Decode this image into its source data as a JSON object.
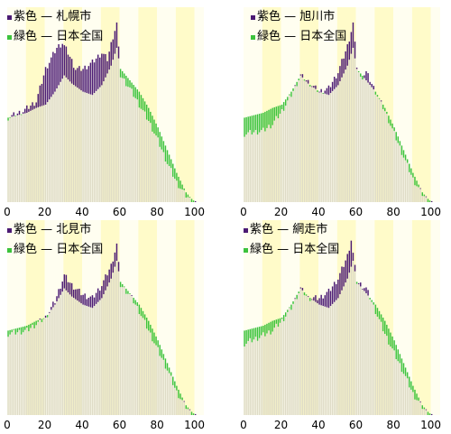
{
  "colors": {
    "band_light": "#fffef0",
    "band_dark": "#fffbc9",
    "male": "#4b1a73",
    "female": "#3cc23c",
    "bar_fill": "#dedbc6"
  },
  "chart_data": [
    {
      "type": "bar",
      "legend": [
        {
          "label": "紫色 — 札幌市",
          "color": "#4b1a73"
        },
        {
          "label": "緑色 — 日本全国",
          "color": "#3cc23c"
        }
      ],
      "x_ticks": [
        0,
        20,
        40,
        60,
        80,
        100
      ],
      "xlim": [
        0,
        105
      ],
      "ylim": [
        0,
        1.2
      ],
      "series": [
        {
          "name": "札幌市",
          "profile": [
            [
              0,
              0.52
            ],
            [
              8,
              0.56
            ],
            [
              15,
              0.62
            ],
            [
              20,
              0.82
            ],
            [
              26,
              0.95
            ],
            [
              29,
              0.98
            ],
            [
              32,
              0.92
            ],
            [
              36,
              0.82
            ],
            [
              40,
              0.82
            ],
            [
              45,
              0.86
            ],
            [
              50,
              0.92
            ],
            [
              53,
              0.88
            ],
            [
              56,
              1.02
            ],
            [
              58,
              1.1
            ],
            [
              60,
              0.78
            ],
            [
              65,
              0.7
            ],
            [
              70,
              0.6
            ],
            [
              75,
              0.5
            ],
            [
              80,
              0.38
            ],
            [
              85,
              0.24
            ],
            [
              90,
              0.12
            ],
            [
              95,
              0.04
            ],
            [
              98,
              0.01
            ],
            [
              100,
              0
            ]
          ]
        },
        {
          "name": "日本全国",
          "profile": [
            [
              0,
              0.52
            ],
            [
              10,
              0.55
            ],
            [
              15,
              0.58
            ],
            [
              20,
              0.6
            ],
            [
              25,
              0.68
            ],
            [
              30,
              0.78
            ],
            [
              34,
              0.73
            ],
            [
              40,
              0.68
            ],
            [
              45,
              0.66
            ],
            [
              50,
              0.72
            ],
            [
              55,
              0.84
            ],
            [
              58,
              0.95
            ],
            [
              60,
              0.82
            ],
            [
              65,
              0.75
            ],
            [
              70,
              0.68
            ],
            [
              75,
              0.58
            ],
            [
              80,
              0.46
            ],
            [
              85,
              0.32
            ],
            [
              90,
              0.18
            ],
            [
              95,
              0.06
            ],
            [
              98,
              0.02
            ],
            [
              100,
              0
            ]
          ]
        }
      ]
    },
    {
      "type": "bar",
      "legend": [
        {
          "label": "紫色 — 旭川市",
          "color": "#4b1a73"
        },
        {
          "label": "緑色 — 日本全国",
          "color": "#3cc23c"
        }
      ],
      "x_ticks": [
        0,
        20,
        40,
        60,
        80,
        100
      ],
      "xlim": [
        0,
        105
      ],
      "ylim": [
        0,
        1.2
      ],
      "series": [
        {
          "name": "旭川市",
          "profile": [
            [
              0,
              0.42
            ],
            [
              10,
              0.44
            ],
            [
              15,
              0.48
            ],
            [
              20,
              0.56
            ],
            [
              25,
              0.66
            ],
            [
              30,
              0.78
            ],
            [
              34,
              0.74
            ],
            [
              40,
              0.68
            ],
            [
              45,
              0.7
            ],
            [
              50,
              0.8
            ],
            [
              55,
              0.96
            ],
            [
              58,
              1.1
            ],
            [
              60,
              0.84
            ],
            [
              62,
              0.76
            ],
            [
              65,
              0.8
            ],
            [
              70,
              0.68
            ],
            [
              75,
              0.56
            ],
            [
              80,
              0.42
            ],
            [
              85,
              0.28
            ],
            [
              90,
              0.14
            ],
            [
              95,
              0.05
            ],
            [
              98,
              0.01
            ],
            [
              100,
              0
            ]
          ]
        },
        {
          "name": "日本全国",
          "profile": [
            [
              0,
              0.52
            ],
            [
              10,
              0.55
            ],
            [
              15,
              0.58
            ],
            [
              20,
              0.6
            ],
            [
              25,
              0.68
            ],
            [
              30,
              0.78
            ],
            [
              34,
              0.73
            ],
            [
              40,
              0.68
            ],
            [
              45,
              0.66
            ],
            [
              50,
              0.72
            ],
            [
              55,
              0.84
            ],
            [
              58,
              0.95
            ],
            [
              60,
              0.82
            ],
            [
              65,
              0.75
            ],
            [
              70,
              0.68
            ],
            [
              75,
              0.58
            ],
            [
              80,
              0.46
            ],
            [
              85,
              0.32
            ],
            [
              90,
              0.18
            ],
            [
              95,
              0.06
            ],
            [
              98,
              0.02
            ],
            [
              100,
              0
            ]
          ]
        }
      ]
    },
    {
      "type": "bar",
      "legend": [
        {
          "label": "紫色 — 北見市",
          "color": "#4b1a73"
        },
        {
          "label": "緑色 — 日本全国",
          "color": "#3cc23c"
        }
      ],
      "x_ticks": [
        0,
        20,
        40,
        60,
        80,
        100
      ],
      "xlim": [
        0,
        105
      ],
      "ylim": [
        0,
        1.2
      ],
      "series": [
        {
          "name": "北見市",
          "profile": [
            [
              0,
              0.5
            ],
            [
              10,
              0.52
            ],
            [
              15,
              0.56
            ],
            [
              20,
              0.6
            ],
            [
              25,
              0.7
            ],
            [
              30,
              0.86
            ],
            [
              34,
              0.8
            ],
            [
              40,
              0.74
            ],
            [
              45,
              0.72
            ],
            [
              50,
              0.8
            ],
            [
              55,
              0.92
            ],
            [
              58,
              1.05
            ],
            [
              60,
              0.8
            ],
            [
              65,
              0.74
            ],
            [
              70,
              0.64
            ],
            [
              75,
              0.52
            ],
            [
              80,
              0.4
            ],
            [
              85,
              0.28
            ],
            [
              90,
              0.14
            ],
            [
              95,
              0.05
            ],
            [
              98,
              0.01
            ],
            [
              100,
              0
            ]
          ]
        },
        {
          "name": "日本全国",
          "profile": [
            [
              0,
              0.52
            ],
            [
              10,
              0.55
            ],
            [
              15,
              0.58
            ],
            [
              20,
              0.6
            ],
            [
              25,
              0.68
            ],
            [
              30,
              0.78
            ],
            [
              34,
              0.73
            ],
            [
              40,
              0.68
            ],
            [
              45,
              0.66
            ],
            [
              50,
              0.72
            ],
            [
              55,
              0.84
            ],
            [
              58,
              0.95
            ],
            [
              60,
              0.82
            ],
            [
              65,
              0.75
            ],
            [
              70,
              0.68
            ],
            [
              75,
              0.58
            ],
            [
              80,
              0.46
            ],
            [
              85,
              0.32
            ],
            [
              90,
              0.18
            ],
            [
              95,
              0.06
            ],
            [
              98,
              0.02
            ],
            [
              100,
              0
            ]
          ]
        }
      ]
    },
    {
      "type": "bar",
      "legend": [
        {
          "label": "紫色 — 網走市",
          "color": "#4b1a73"
        },
        {
          "label": "緑色 — 日本全国",
          "color": "#3cc23c"
        }
      ],
      "x_ticks": [
        0,
        20,
        40,
        60,
        80,
        100
      ],
      "xlim": [
        0,
        105
      ],
      "ylim": [
        0,
        1.2
      ],
      "series": [
        {
          "name": "網走市",
          "profile": [
            [
              0,
              0.44
            ],
            [
              8,
              0.48
            ],
            [
              15,
              0.52
            ],
            [
              20,
              0.58
            ],
            [
              25,
              0.66
            ],
            [
              30,
              0.78
            ],
            [
              34,
              0.72
            ],
            [
              40,
              0.72
            ],
            [
              45,
              0.76
            ],
            [
              50,
              0.84
            ],
            [
              55,
              0.98
            ],
            [
              57,
              1.08
            ],
            [
              60,
              0.82
            ],
            [
              65,
              0.78
            ],
            [
              70,
              0.64
            ],
            [
              75,
              0.5
            ],
            [
              80,
              0.38
            ],
            [
              85,
              0.26
            ],
            [
              90,
              0.13
            ],
            [
              95,
              0.05
            ],
            [
              98,
              0.01
            ],
            [
              100,
              0
            ]
          ]
        },
        {
          "name": "日本全国",
          "profile": [
            [
              0,
              0.52
            ],
            [
              10,
              0.55
            ],
            [
              15,
              0.58
            ],
            [
              20,
              0.6
            ],
            [
              25,
              0.68
            ],
            [
              30,
              0.78
            ],
            [
              34,
              0.73
            ],
            [
              40,
              0.68
            ],
            [
              45,
              0.66
            ],
            [
              50,
              0.72
            ],
            [
              55,
              0.84
            ],
            [
              58,
              0.95
            ],
            [
              60,
              0.82
            ],
            [
              65,
              0.75
            ],
            [
              70,
              0.68
            ],
            [
              75,
              0.58
            ],
            [
              80,
              0.46
            ],
            [
              85,
              0.32
            ],
            [
              90,
              0.18
            ],
            [
              95,
              0.06
            ],
            [
              98,
              0.02
            ],
            [
              100,
              0
            ]
          ]
        }
      ]
    }
  ]
}
